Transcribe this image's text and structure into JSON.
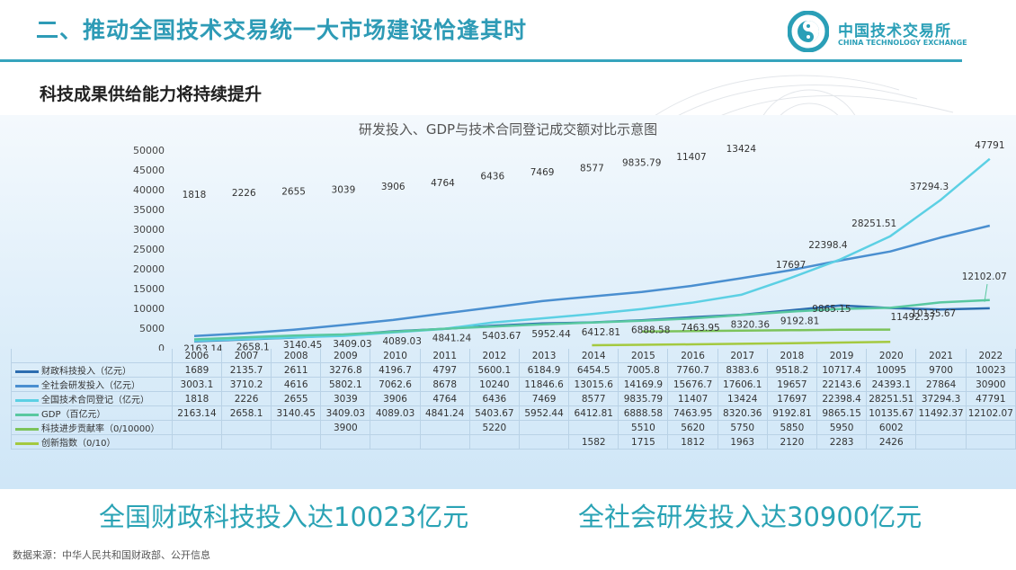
{
  "header": {
    "title": "二、推动全国技术交易统一大市场建设恰逢其时",
    "logo_cn": "中国技术交易所",
    "logo_en": "CHINA TECHNOLOGY EXCHANGE"
  },
  "subtitle": "科技成果供给能力将持续提升",
  "chart_data": {
    "type": "line",
    "title": "研发投入、GDP与技术合同登记成交额对比示意图",
    "ylim": [
      0,
      50000
    ],
    "yticks": [
      0,
      5000,
      10000,
      15000,
      20000,
      25000,
      30000,
      35000,
      40000,
      45000,
      50000
    ],
    "categories": [
      "2006",
      "2007",
      "2008",
      "2009",
      "2010",
      "2011",
      "2012",
      "2013",
      "2014",
      "2015",
      "2016",
      "2017",
      "2018",
      "2019",
      "2020",
      "2021",
      "2022"
    ],
    "series": [
      {
        "name": "财政科技投入（亿元）",
        "color": "#2c6db0",
        "values": [
          1689,
          2135.7,
          2611,
          3276.8,
          4196.7,
          4797,
          5600.1,
          6184.9,
          6454.5,
          7005.8,
          7760.7,
          8383.6,
          9518.2,
          10717.4,
          10095,
          9700,
          10023
        ]
      },
      {
        "name": "全社会研发投入（亿元）",
        "color": "#4a8fd0",
        "values": [
          3003.1,
          3710.2,
          4616,
          5802.1,
          7062.6,
          8678,
          10240,
          11846.6,
          13015.6,
          14169.9,
          15676.7,
          17606.1,
          19657,
          22143.6,
          24393.1,
          27864,
          30900
        ]
      },
      {
        "name": "全国技术合同登记（亿元）",
        "color": "#5cd0e4",
        "values": [
          1818,
          2226,
          2655,
          3039,
          3906,
          4764,
          6436,
          7469,
          8577,
          9835.79,
          11407,
          13424,
          17697,
          22398.4,
          28251.51,
          37294.3,
          47791
        ]
      },
      {
        "name": "GDP（百亿元）",
        "color": "#59c8a0",
        "values": [
          2163.14,
          2658.1,
          3140.45,
          3409.03,
          4089.03,
          4841.24,
          5403.67,
          5952.44,
          6412.81,
          6888.58,
          7463.95,
          8320.36,
          9192.81,
          9865.15,
          10135.67,
          11492.37,
          12102.07
        ]
      },
      {
        "name": "科技进步贡献率（0/10000）",
        "color": "#7cc35a",
        "values": [
          null,
          null,
          null,
          3900,
          null,
          null,
          5220,
          null,
          null,
          5510,
          5620,
          5750,
          5850,
          5950,
          6002,
          null,
          null
        ]
      },
      {
        "name": "创新指数（0/10）",
        "color": "#a4c940",
        "values": [
          null,
          null,
          null,
          null,
          null,
          null,
          null,
          null,
          1582,
          1715,
          1812,
          1963,
          2120,
          2283,
          2426,
          null,
          null
        ]
      }
    ],
    "data_labels": {
      "tech_contract": [
        "1818",
        "2226",
        "2655",
        "3039",
        "3906",
        "4764",
        "6436",
        "7469",
        "8577",
        "9835.79",
        "11407",
        "13424",
        "17697",
        "22398.4",
        "28251.51",
        "37294.3",
        "47791"
      ],
      "gdp": [
        "2163.14",
        "2658.1",
        "3140.45",
        "3409.03",
        "4089.03",
        "4841.24",
        "5403.67",
        "5952.44",
        "6412.81",
        "6888.58",
        "7463.95",
        "8320.36",
        "9192.81",
        "9865.15",
        "10135.67",
        "11492.37",
        "12102.07"
      ]
    },
    "table": [
      [
        "1689",
        "2135.7",
        "2611",
        "3276.8",
        "4196.7",
        "4797",
        "5600.1",
        "6184.9",
        "6454.5",
        "7005.8",
        "7760.7",
        "8383.6",
        "9518.2",
        "10717.4",
        "10095",
        "9700",
        "10023"
      ],
      [
        "3003.1",
        "3710.2",
        "4616",
        "5802.1",
        "7062.6",
        "8678",
        "10240",
        "11846.6",
        "13015.6",
        "14169.9",
        "15676.7",
        "17606.1",
        "19657",
        "22143.6",
        "24393.1",
        "27864",
        "30900"
      ],
      [
        "1818",
        "2226",
        "2655",
        "3039",
        "3906",
        "4764",
        "6436",
        "7469",
        "8577",
        "9835.79",
        "11407",
        "13424",
        "17697",
        "22398.4",
        "28251.51",
        "37294.3",
        "47791"
      ],
      [
        "2163.14",
        "2658.1",
        "3140.45",
        "3409.03",
        "4089.03",
        "4841.24",
        "5403.67",
        "5952.44",
        "6412.81",
        "6888.58",
        "7463.95",
        "8320.36",
        "9192.81",
        "9865.15",
        "10135.67",
        "11492.37",
        "12102.07"
      ],
      [
        "",
        "",
        "",
        "3900",
        "",
        "",
        "5220",
        "",
        "",
        "5510",
        "5620",
        "5750",
        "5850",
        "5950",
        "6002",
        "",
        ""
      ],
      [
        "",
        "",
        "",
        "",
        "",
        "",
        "",
        "",
        "1582",
        "1715",
        "1812",
        "1963",
        "2120",
        "2283",
        "2426",
        "",
        ""
      ]
    ]
  },
  "stats": {
    "fiscal": "全国财政科技投入达10023亿元",
    "rd": "全社会研发投入达30900亿元"
  },
  "source": "数据来源：中华人民共和国财政部、公开信息"
}
